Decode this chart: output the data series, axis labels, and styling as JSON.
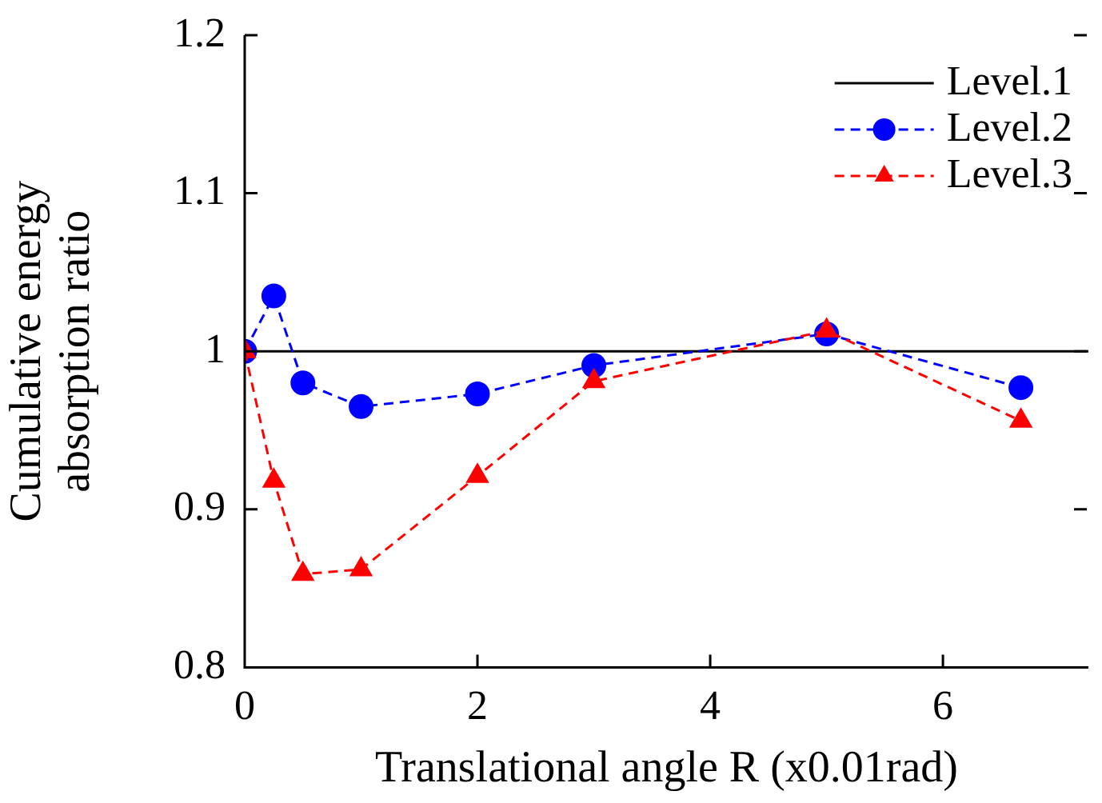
{
  "chart_data": {
    "type": "line",
    "xlabel": "Translational angle R (x0.01rad)",
    "ylabel": "Cumulative energy absorption ratio",
    "xlim": [
      0,
      7.25
    ],
    "xticks": [
      0,
      2,
      4,
      6
    ],
    "ylim": [
      0.8,
      1.2
    ],
    "yticks": [
      {
        "value": 0.8,
        "label": "0.8"
      },
      {
        "value": 0.9,
        "label": "0.9"
      },
      {
        "value": 1,
        "label": "1"
      },
      {
        "value": 1.1,
        "label": "1.1"
      },
      {
        "value": 1.2,
        "label": "1.2"
      }
    ],
    "grid": false,
    "legend": "top right",
    "series": [
      {
        "name": "Level.1",
        "color": "#000000",
        "marker": "none",
        "line_style": "solid",
        "x": [
          0,
          7.25
        ],
        "values": [
          1,
          1
        ]
      },
      {
        "name": "Level.2",
        "color": "#0000ff",
        "marker": "circle",
        "line_style": "dashed",
        "x": [
          0,
          0.25,
          0.5,
          1,
          2,
          3,
          5,
          6.67
        ],
        "values": [
          1.0,
          1.035,
          0.98,
          0.965,
          0.973,
          0.991,
          1.011,
          0.977
        ]
      },
      {
        "name": "Level.3",
        "color": "#ff0000",
        "marker": "triangle",
        "line_style": "dashed",
        "x": [
          0,
          0.25,
          0.5,
          1,
          2,
          3,
          5,
          6.67
        ],
        "values": [
          1.0,
          0.918,
          0.859,
          0.862,
          0.921,
          0.981,
          1.013,
          0.956
        ]
      }
    ]
  }
}
